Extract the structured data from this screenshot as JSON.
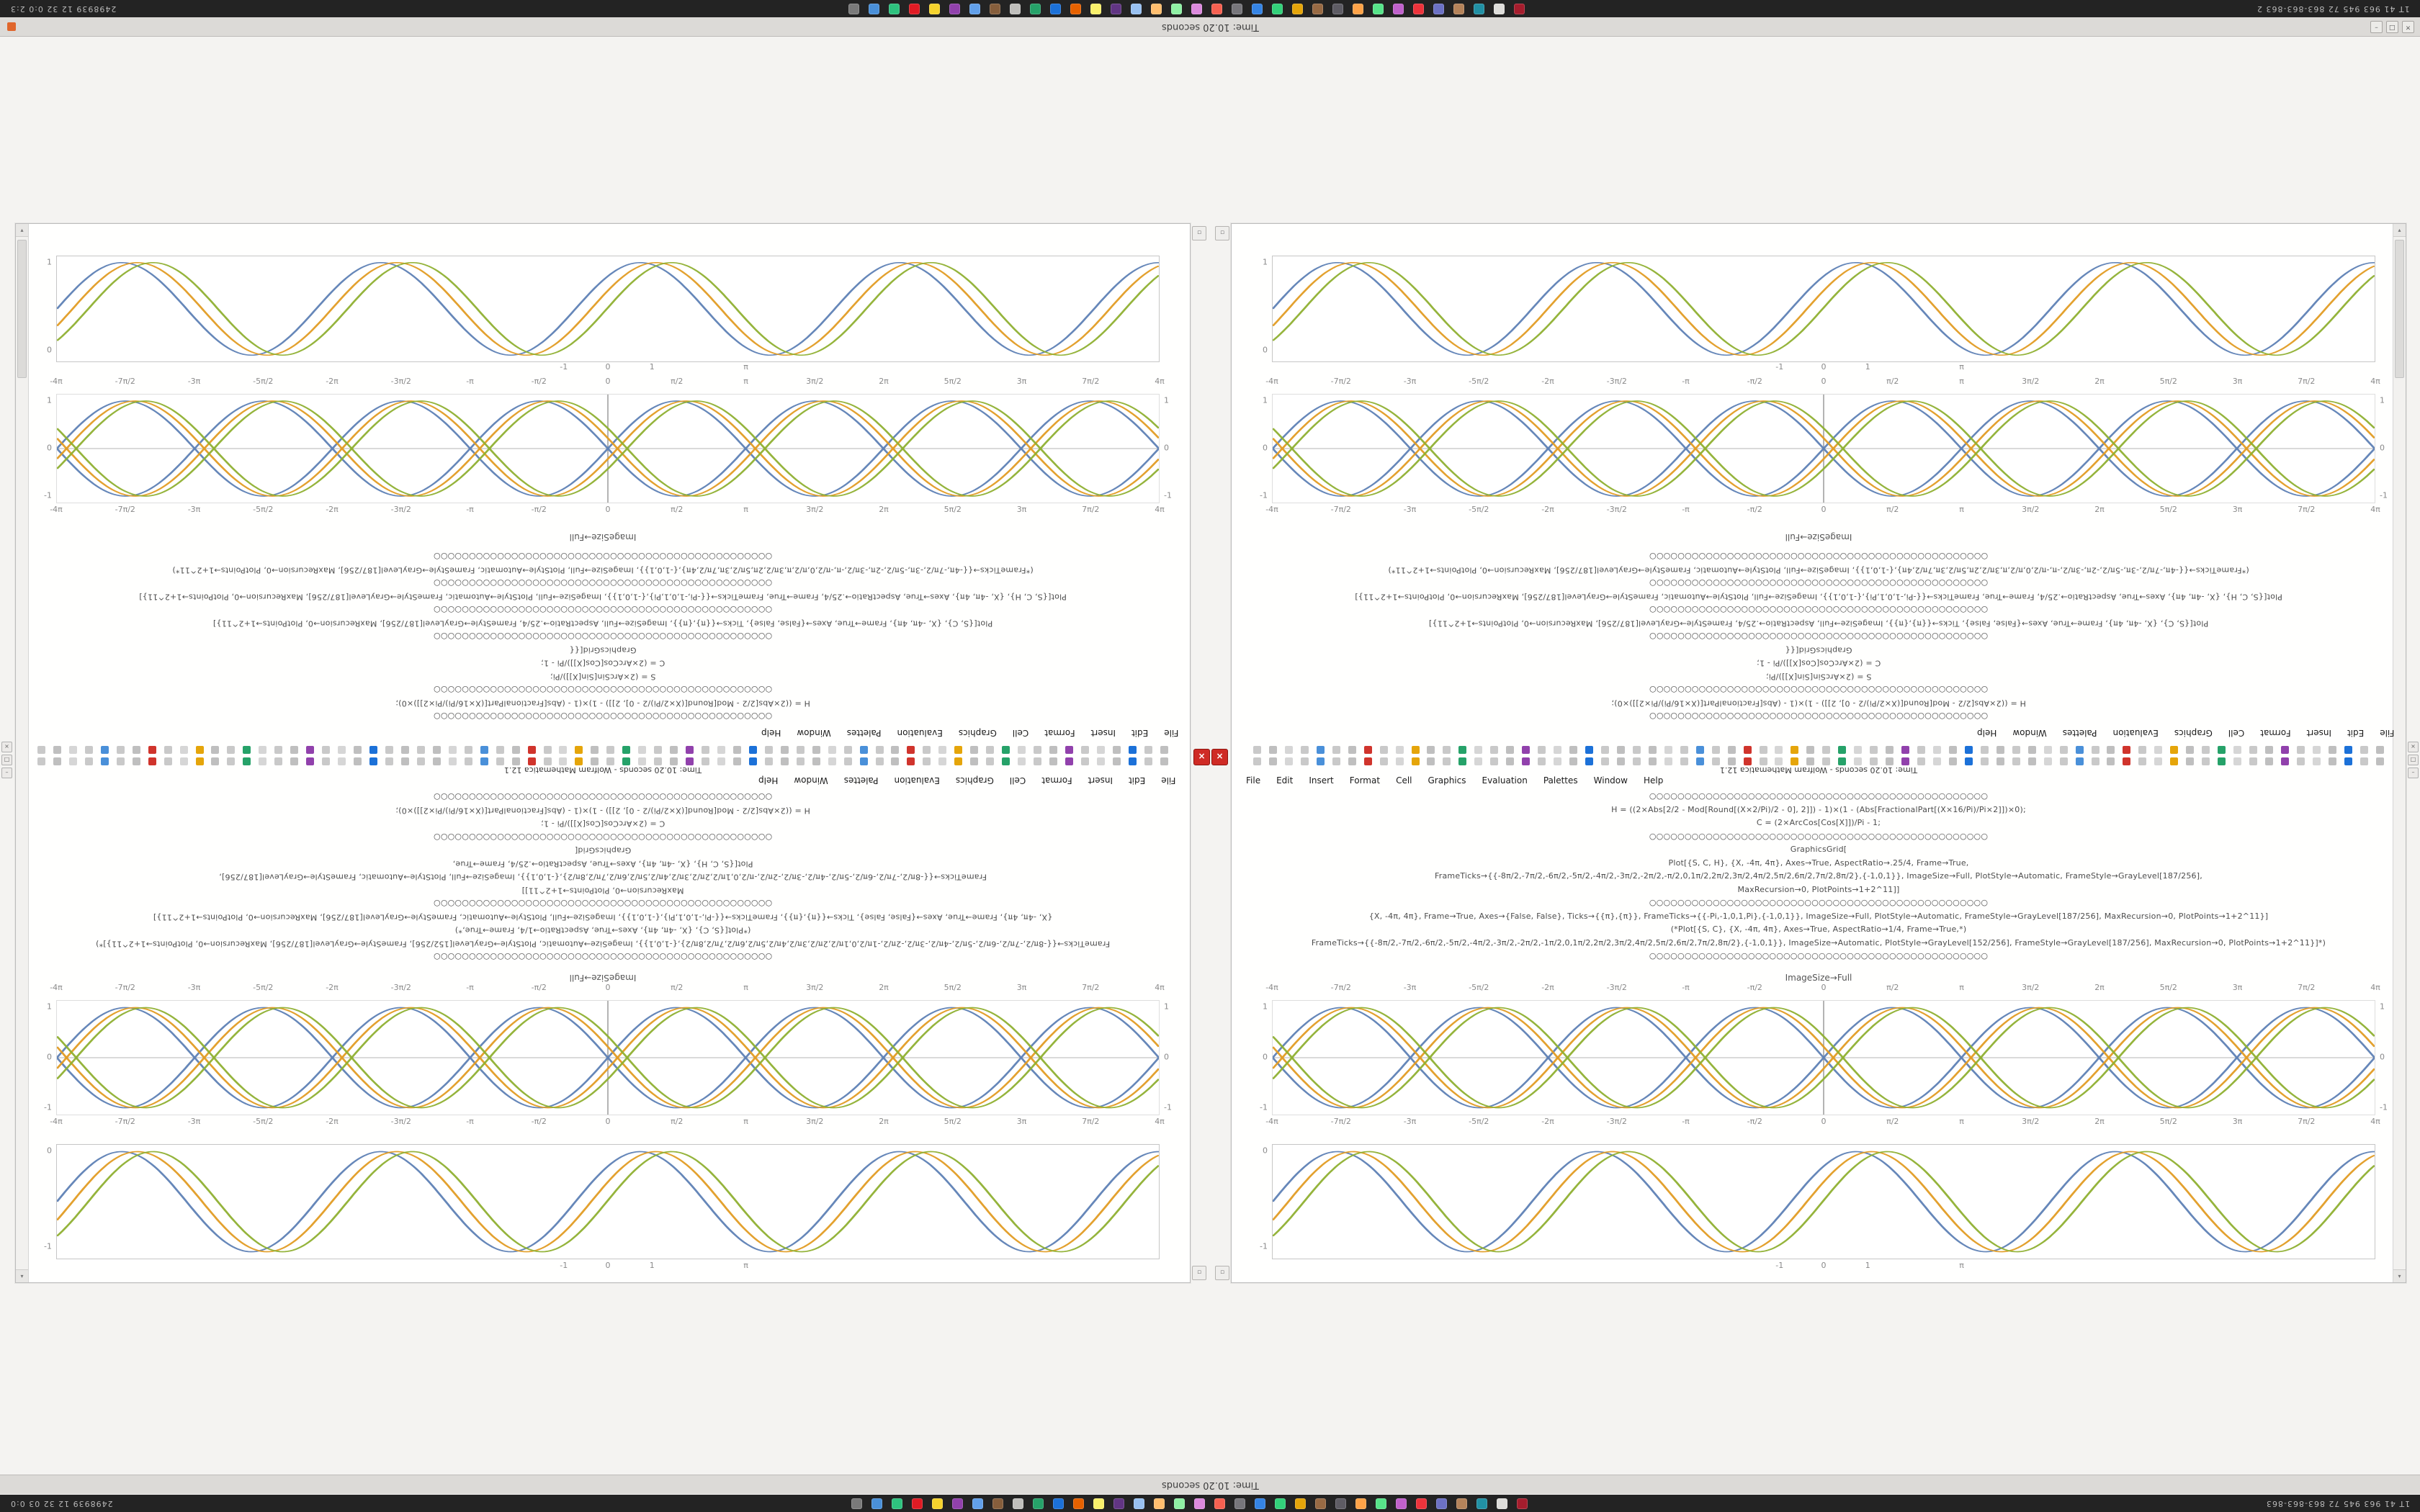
{
  "taskbar": {
    "icons": [
      "#7a7a7a",
      "#4a90d9",
      "#2ec27e",
      "#e01b24",
      "#f6d32d",
      "#9141ac",
      "#62a0ea",
      "#865e3c",
      "#c0bfbc",
      "#26a269",
      "#1c71d8",
      "#e66100",
      "#f9f06b",
      "#613583",
      "#99c1f1",
      "#ffbe6f",
      "#8ff0a4",
      "#dc8add",
      "#f66151",
      "#77767b",
      "#3584e4",
      "#33d17a",
      "#e5a50a",
      "#986a44",
      "#5e5c64",
      "#ffa348",
      "#57e389",
      "#c061cb",
      "#ed333b",
      "#6c71c4",
      "#b5835a",
      "#2190a4",
      "#deddda",
      "#a51d2d"
    ]
  },
  "taskbar_top": {
    "left_text": "2498939 12 32 0:0 2:3",
    "right_text": "1T 41 963 945 72 863-863-863 2"
  },
  "taskbar_bottom": {
    "left_text": "2498939 12 32 03 0:0",
    "right_text": "1T 41 963 945 72 863-863-863"
  },
  "titlebar_top": {
    "title": "Time: 10.20 seconds",
    "badge_color": "#e0662c"
  },
  "titlebar_bottom": {
    "title": "Time: 10.20 seconds"
  },
  "chrome": {
    "window_controls": [
      "–",
      "□",
      "×"
    ],
    "edge_controls": [
      "×",
      "□",
      "–"
    ],
    "arrow_up": "▴",
    "arrow_down": "▾",
    "pane_button_glyph": "▫",
    "abort_glyph": "×"
  },
  "notebook": {
    "window_title": "Time: 10.20 seconds - Wolfram Mathematica 12.1",
    "menu_items": [
      "File",
      "Edit",
      "Insert",
      "Format",
      "Cell",
      "Graphics",
      "Evaluation",
      "Palettes",
      "Window",
      "Help"
    ],
    "caption": "ImageSize→Full",
    "mini_icons": [
      "#c9c9c9",
      "#bfbfbf",
      "#d6d6d6",
      "#c9c9c9",
      "#4a90d9",
      "#c9c9c9",
      "#bfbfbf",
      "#d0342c",
      "#c9c9c9",
      "#d6d6d6",
      "#e5a50a",
      "#bfbfbf",
      "#c9c9c9",
      "#26a269",
      "#d6d6d6",
      "#c9c9c9",
      "#bfbfbf",
      "#9141ac",
      "#c9c9c9",
      "#d6d6d6",
      "#bfbfbf",
      "#1c71d8",
      "#c9c9c9",
      "#bfbfbf"
    ],
    "code_top": [
      "○○○○○○○○○○○○○○○○○○○○○○○○○○○○○○○○○○○○○○○○○○○○○○○○",
      "(*FrameTicks→{{-4π,-7π/2,-3π,-5π/2,-2π,-3π/2,-π,-π/2,0,π/2,π,3π/2,2π,5π/2,3π,7π/2,4π},{-1,0,1}}, ImageSize→Full, PlotStyle→Automatic, FrameStyle→GrayLevel[187/256], MaxRecursion→0, PlotPoints→1+2^11*)",
      "○○○○○○○○○○○○○○○○○○○○○○○○○○○○○○○○○○○○○○○○○○○○○○○○",
      "Plot[{S, C, H}, {X, -4π, 4π}, Axes→True, AspectRatio→.25/4, Frame→True, FrameTicks→{{-Pi,-1,0,1,Pi},{-1,0,1}}, ImageSize→Full, PlotStyle→Automatic, FrameStyle→GrayLevel[187/256], MaxRecursion→0, PlotPoints→1+2^11}]",
      "○○○○○○○○○○○○○○○○○○○○○○○○○○○○○○○○○○○○○○○○○○○○○○○○",
      "Plot[{S, C}, {X, -4π, 4π}, Frame→True, Axes→{False, False}, Ticks→{{π},{π}}, ImageSize→Full, AspectRatio→.25/4, FrameStyle→GrayLevel[187/256], MaxRecursion→0, PlotPoints→1+2^11}]",
      "○○○○○○○○○○○○○○○○○○○○○○○○○○○○○○○○○○○○○○○○○○○○○○○○",
      "GraphicsGrid[{{",
      "C = (2×ArcCos[Cos[X]])/Pi - 1;",
      "S = (2×ArcSin[Sin[X]])/Pi;",
      "○○○○○○○○○○○○○○○○○○○○○○○○○○○○○○○○○○○○○○○○○○○○○○○○",
      "H = ((2×Abs[2/2 - Mod[Round[(X×2/Pi)/2 - 0], 2]]) - 1)×(1 - (Abs[FractionalPart[(X×16/Pi)/Pi×2]])×0);",
      "○○○○○○○○○○○○○○○○○○○○○○○○○○○○○○○○○○○○○○○○○○○○○○○○"
    ],
    "code_bottom": [
      "○○○○○○○○○○○○○○○○○○○○○○○○○○○○○○○○○○○○○○○○○○○○○○○○",
      "H = ((2×Abs[2/2 - Mod[Round[(X×2/Pi)/2 - 0], 2]]) - 1)×(1 - (Abs[FractionalPart[(X×16/Pi)/Pi×2]])×0);",
      "C = (2×ArcCos[Cos[X]])/Pi - 1;",
      "○○○○○○○○○○○○○○○○○○○○○○○○○○○○○○○○○○○○○○○○○○○○○○○○",
      "GraphicsGrid[",
      "Plot[{S, C, H}, {X, -4π, 4π}, Axes→True, AspectRatio→.25/4, Frame→True,",
      "FrameTicks→{{-8π/2,-7π/2,-6π/2,-5π/2,-4π/2,-3π/2,-2π/2,-π/2,0,1π/2,2π/2,3π/2,4π/2,5π/2,6π/2,7π/2,8π/2},{-1,0,1}}, ImageSize→Full, PlotStyle→Automatic, FrameStyle→GrayLevel[187/256],",
      "MaxRecursion→0, PlotPoints→1+2^11]]",
      "○○○○○○○○○○○○○○○○○○○○○○○○○○○○○○○○○○○○○○○○○○○○○○○○",
      "{X, -4π, 4π}, Frame→True, Axes→{False, False}, Ticks→{{π},{π}}, FrameTicks→{{-Pi,-1,0,1,Pi},{-1,0,1}}, ImageSize→Full, PlotStyle→Automatic, FrameStyle→GrayLevel[187/256], MaxRecursion→0, PlotPoints→1+2^11}]",
      "(*Plot[{S, C}, {X, -4π, 4π}, Axes→True, AspectRatio→1/4, Frame→True,*)",
      "FrameTicks→{{-8π/2,-7π/2,-6π/2,-5π/2,-4π/2,-3π/2,-2π/2,-1π/2,0,1π/2,2π/2,3π/2,4π/2,5π/2,6π/2,7π/2,8π/2},{-1,0,1}}, ImageSize→Automatic, PlotStyle→GrayLevel[152/256], FrameStyle→GrayLevel[187/256], MaxRecursion→0, PlotPoints→1+2^11}]*)",
      "○○○○○○○○○○○○○○○○○○○○○○○○○○○○○○○○○○○○○○○○○○○○○○○○"
    ],
    "plots": {
      "A": {
        "cycles": 4.25,
        "series": [
          {
            "c": "#5e81b5",
            "ph": 0
          },
          {
            "c": "#e19c24",
            "ph": -0.38
          },
          {
            "c": "#8fb032",
            "ph": -0.76
          }
        ],
        "x_ticks": [
          {
            "p": 0.46,
            "l": "-1"
          },
          {
            "p": 0.5,
            "l": "0"
          },
          {
            "p": 0.54,
            "l": "1"
          },
          {
            "p": 0.625,
            "l": "π"
          }
        ],
        "y_ticks": [
          {
            "p": 0.06,
            "l": "1"
          },
          {
            "p": 0.9,
            "l": "0"
          }
        ]
      },
      "B": {
        "cycles": 4,
        "mirror": true,
        "center_axes": true,
        "series": [
          {
            "c": "#5e81b5",
            "ph": 0
          },
          {
            "c": "#e19c24",
            "ph": -0.22
          },
          {
            "c": "#8fb032",
            "ph": -0.44
          }
        ],
        "x_ticks": [
          {
            "p": 0,
            "l": "-4π"
          },
          {
            "p": 0.0625,
            "l": "-7π/2"
          },
          {
            "p": 0.125,
            "l": "-3π"
          },
          {
            "p": 0.1875,
            "l": "-5π/2"
          },
          {
            "p": 0.25,
            "l": "-2π"
          },
          {
            "p": 0.3125,
            "l": "-3π/2"
          },
          {
            "p": 0.375,
            "l": "-π"
          },
          {
            "p": 0.4375,
            "l": "-π/2"
          },
          {
            "p": 0.5,
            "l": "0"
          },
          {
            "p": 0.5625,
            "l": "π/2"
          },
          {
            "p": 0.625,
            "l": "π"
          },
          {
            "p": 0.6875,
            "l": "3π/2"
          },
          {
            "p": 0.75,
            "l": "2π"
          },
          {
            "p": 0.8125,
            "l": "5π/2"
          },
          {
            "p": 0.875,
            "l": "3π"
          },
          {
            "p": 0.9375,
            "l": "7π/2"
          },
          {
            "p": 1,
            "l": "4π"
          }
        ],
        "y_ticks": [
          {
            "p": 0.06,
            "l": "1"
          },
          {
            "p": 0.5,
            "l": "0"
          },
          {
            "p": 0.94,
            "l": "-1"
          }
        ]
      },
      "A2": {
        "cycles": 4.25,
        "series": [
          {
            "c": "#5e81b5",
            "ph": 0
          },
          {
            "c": "#e19c24",
            "ph": -0.38
          },
          {
            "c": "#8fb032",
            "ph": -0.76
          }
        ],
        "x_ticks": [
          {
            "p": 0.46,
            "l": "-1"
          },
          {
            "p": 0.5,
            "l": "0"
          },
          {
            "p": 0.54,
            "l": "1"
          },
          {
            "p": 0.625,
            "l": "π"
          }
        ],
        "y_ticks": [
          {
            "p": 0.06,
            "l": "0"
          },
          {
            "p": 0.9,
            "l": "-1"
          }
        ]
      }
    }
  },
  "chart_data": [
    {
      "type": "line",
      "title": "",
      "x_range": [
        "-4π",
        "4π"
      ],
      "x_ticks": [
        "-1",
        "0",
        "1",
        "π"
      ],
      "y_ticks": [
        0,
        1
      ],
      "series": [
        {
          "name": "S",
          "color": "#5e81b5",
          "function": "sin(x)"
        },
        {
          "name": "C",
          "color": "#e19c24",
          "function": "sin(x-φ)"
        },
        {
          "name": "H",
          "color": "#8fb032",
          "function": "sin(x-2φ)"
        }
      ],
      "legend": "none",
      "grid": false,
      "frame": true
    },
    {
      "type": "line",
      "title": "",
      "x_range": [
        "-4π",
        "4π"
      ],
      "x_ticks": [
        "-4π",
        "-7π/2",
        "-3π",
        "-5π/2",
        "-2π",
        "-3π/2",
        "-π",
        "-π/2",
        "0",
        "π/2",
        "π",
        "3π/2",
        "2π",
        "5π/2",
        "3π",
        "7π/2",
        "4π"
      ],
      "y_ticks": [
        -1,
        0,
        1
      ],
      "series": [
        {
          "name": "S",
          "color": "#5e81b5",
          "function": "±sin(x)"
        },
        {
          "name": "C",
          "color": "#e19c24",
          "function": "±sin(x-φ)"
        },
        {
          "name": "H",
          "color": "#8fb032",
          "function": "±sin(x-2φ)"
        }
      ],
      "legend": "none",
      "grid": false,
      "axes_centered": true
    }
  ]
}
